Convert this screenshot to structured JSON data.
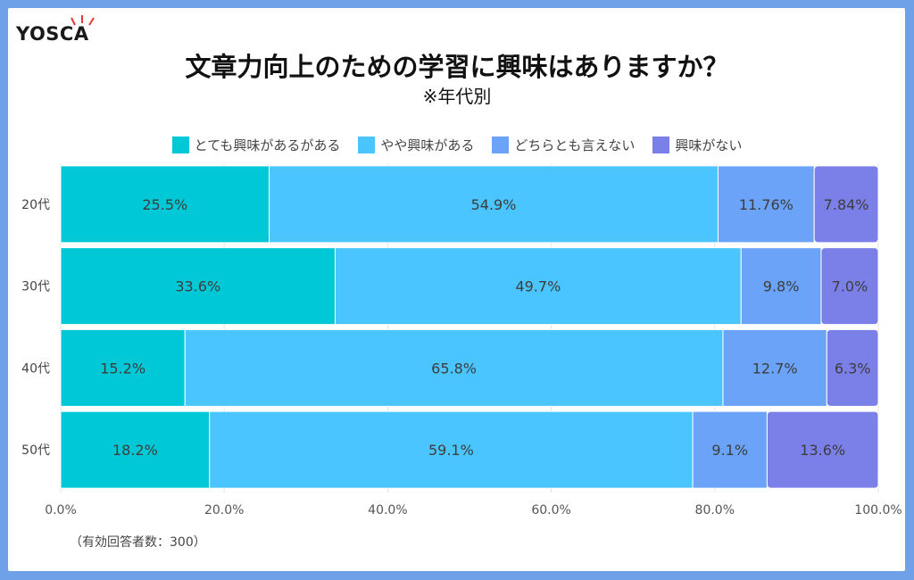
{
  "brand": {
    "logo_text": "YOSCA"
  },
  "chart_data": {
    "type": "bar",
    "orientation": "horizontal",
    "stacked": true,
    "title": "文章力向上のための学習に興味はありますか？",
    "subtitle": "※年代別",
    "categories": [
      "20代",
      "30代",
      "40代",
      "50代"
    ],
    "series": [
      {
        "name": "とても興味があるがある",
        "color": "#00c8d7",
        "values": [
          25.5,
          33.6,
          15.2,
          18.2
        ],
        "labels": [
          "25.5%",
          "33.6%",
          "15.2%",
          "18.2%"
        ]
      },
      {
        "name": "やや興味がある",
        "color": "#4ac5ff",
        "values": [
          54.9,
          49.7,
          65.8,
          59.1
        ],
        "labels": [
          "54.9%",
          "49.7%",
          "65.8%",
          "59.1%"
        ]
      },
      {
        "name": "どちらとも言えない",
        "color": "#6aa3f7",
        "values": [
          11.76,
          9.8,
          12.7,
          9.1
        ],
        "labels": [
          "11.76%",
          "9.8%",
          "12.7%",
          "9.1%"
        ]
      },
      {
        "name": "興味がない",
        "color": "#7b7fe8",
        "values": [
          7.84,
          7.0,
          6.3,
          13.6
        ],
        "labels": [
          "7.84%",
          "7.0%",
          "6.3%",
          "13.6%"
        ]
      }
    ],
    "xlim": [
      0,
      100
    ],
    "xticks": [
      0,
      20,
      40,
      60,
      80,
      100
    ],
    "xtick_labels": [
      "0.0%",
      "20.0%",
      "40.0%",
      "60.0%",
      "80.0%",
      "100.0%"
    ],
    "grid": true,
    "legend": "top-center"
  },
  "footnote": "（有効回答者数：300）"
}
